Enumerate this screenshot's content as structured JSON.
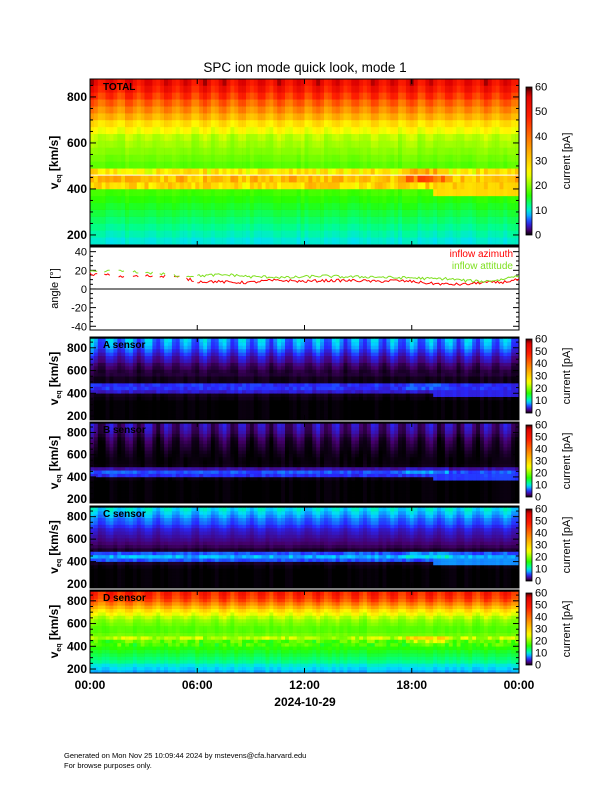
{
  "chart_data": {
    "type": "heatmap",
    "title": "SPC ion mode quick look, mode 1",
    "xlabel": "2024-10-29",
    "x_tick_labels": [
      "00:00",
      "06:00",
      "12:00",
      "18:00",
      "00:00"
    ],
    "x_ticks_hours": [
      0,
      6,
      12,
      18,
      24
    ],
    "xlim_hours": [
      0,
      24
    ],
    "colorbar": {
      "label": "current [pA]",
      "range": [
        0,
        60
      ],
      "ticks": [
        0,
        10,
        20,
        30,
        40,
        50,
        60
      ]
    },
    "velocity_bin_centers_kms": [
      175,
      205,
      235,
      265,
      295,
      325,
      355,
      385,
      415,
      445,
      475,
      505,
      535,
      565,
      595,
      625,
      655,
      685,
      715,
      745,
      775,
      805,
      835,
      865
    ],
    "spectrograms": [
      {
        "key": "total",
        "label": "TOTAL",
        "ylabel_main": "v",
        "ylabel_sub": "eq",
        "ylabel_unit": "[km/s]",
        "yticks": [
          200,
          400,
          600,
          800
        ],
        "ylim": [
          152,
          878
        ],
        "profile_pA": [
          10,
          11,
          12,
          13,
          14,
          15,
          16,
          17,
          29,
          32,
          27,
          18,
          19,
          20,
          21,
          22,
          25,
          28,
          33,
          37,
          41,
          46,
          50,
          53
        ],
        "hourly_modulation_pA": 5
      },
      {
        "key": "a",
        "label": "A sensor",
        "ylabel_main": "v",
        "ylabel_sub": "eq",
        "ylabel_unit": "[km/s]",
        "yticks": [
          200,
          400,
          600,
          800
        ],
        "ylim": [
          165,
          895
        ],
        "profile_pA": [
          0,
          0,
          0,
          0,
          0,
          0,
          0.3,
          0.5,
          4,
          5,
          5,
          0.5,
          0.5,
          1,
          1,
          1.5,
          2,
          3,
          3.5,
          4.5,
          5.5,
          6.5,
          7,
          7.5
        ],
        "hourly_modulation_pA": 2.5
      },
      {
        "key": "b",
        "label": "B sensor",
        "ylabel_main": "v",
        "ylabel_sub": "eq",
        "ylabel_unit": "[km/s]",
        "yticks": [
          200,
          400,
          600,
          800
        ],
        "ylim": [
          165,
          895
        ],
        "profile_pA": [
          0,
          0,
          0,
          0,
          0,
          0,
          0,
          0.3,
          5,
          6,
          3,
          0.3,
          0.2,
          0.2,
          0.3,
          0.4,
          0.6,
          0.8,
          1,
          1.3,
          1.8,
          2.3,
          2.6,
          2.8
        ],
        "hourly_modulation_pA": 1.8
      },
      {
        "key": "c",
        "label": "C sensor",
        "ylabel_main": "v",
        "ylabel_sub": "eq",
        "ylabel_unit": "[km/s]",
        "yticks": [
          200,
          400,
          600,
          800
        ],
        "ylim": [
          165,
          895
        ],
        "profile_pA": [
          0,
          0,
          0,
          0,
          0,
          0,
          0.2,
          0.6,
          6,
          8,
          6,
          0.8,
          1.5,
          2,
          2.5,
          3,
          3.5,
          4,
          5,
          6,
          6.5,
          7.5,
          8.5,
          9.5
        ],
        "hourly_modulation_pA": 1.5
      },
      {
        "key": "d",
        "label": "D sensor",
        "ylabel_main": "v",
        "ylabel_sub": "eq",
        "ylabel_unit": "[km/s]",
        "yticks": [
          200,
          400,
          600,
          800
        ],
        "ylim": [
          165,
          895
        ],
        "profile_pA": [
          8,
          9,
          10,
          12,
          13,
          14,
          15,
          16,
          17,
          18,
          22,
          19,
          18,
          18,
          19,
          20,
          22,
          25,
          28,
          33,
          38,
          43,
          46,
          48
        ],
        "hourly_modulation_pA": 5
      }
    ],
    "angle_panel": {
      "type": "line",
      "ylabel": "angle [°]",
      "yticks": [
        -40,
        -20,
        0,
        20,
        40
      ],
      "ylim": [
        -44,
        45
      ],
      "x_hours": [
        0,
        1,
        2,
        3,
        4,
        5,
        6,
        7,
        8,
        9,
        10,
        11,
        12,
        13,
        14,
        15,
        16,
        17,
        18,
        19,
        20,
        21,
        22,
        23,
        24
      ],
      "series": [
        {
          "name": "inflow azimuth",
          "color": "#ff0000",
          "values": [
            16,
            15,
            13,
            14,
            14,
            13,
            8,
            8,
            7,
            7,
            9,
            9,
            8,
            9,
            9,
            9,
            8,
            9,
            8,
            6,
            5,
            5,
            7,
            7,
            10
          ]
        },
        {
          "name": "inflow attitude",
          "color": "#7fe020",
          "values": [
            18,
            19,
            19,
            18,
            16,
            14,
            14,
            15,
            15,
            13,
            13,
            12,
            13,
            14,
            13,
            13,
            13,
            12,
            12,
            11,
            11,
            9,
            8,
            10,
            15
          ]
        }
      ]
    }
  },
  "footer": {
    "line1": "Generated on Mon Nov 25 10:09:44 2024 by mstevens@cfa.harvard.edu",
    "line2": "For browse purposes only."
  }
}
